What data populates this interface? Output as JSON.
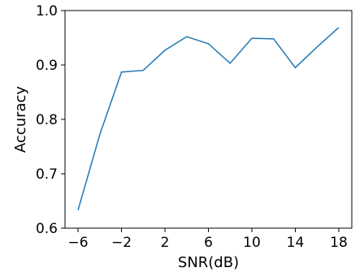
{
  "chart_data": {
    "type": "line",
    "title": "",
    "xlabel": "SNR(dB)",
    "ylabel": "Accuracy",
    "xlim": [
      -7.2,
      19.2
    ],
    "ylim": [
      0.6,
      1.0
    ],
    "xticks": [
      -6,
      -2,
      2,
      6,
      10,
      14,
      18
    ],
    "xtick_labels": [
      "−6",
      "−2",
      "2",
      "6",
      "10",
      "14",
      "18"
    ],
    "yticks": [
      0.6,
      0.7,
      0.8,
      0.9,
      1.0
    ],
    "ytick_labels": [
      "0.6",
      "0.7",
      "0.8",
      "0.9",
      "1.0"
    ],
    "grid": false,
    "series": [
      {
        "color": "#1f77b4",
        "x": [
          -6,
          -4,
          -2,
          0,
          2,
          4,
          6,
          8,
          10,
          12,
          14,
          16,
          18
        ],
        "y": [
          0.633,
          0.772,
          0.887,
          0.89,
          0.927,
          0.952,
          0.939,
          0.903,
          0.949,
          0.948,
          0.895,
          0.933,
          0.969
        ]
      }
    ]
  }
}
